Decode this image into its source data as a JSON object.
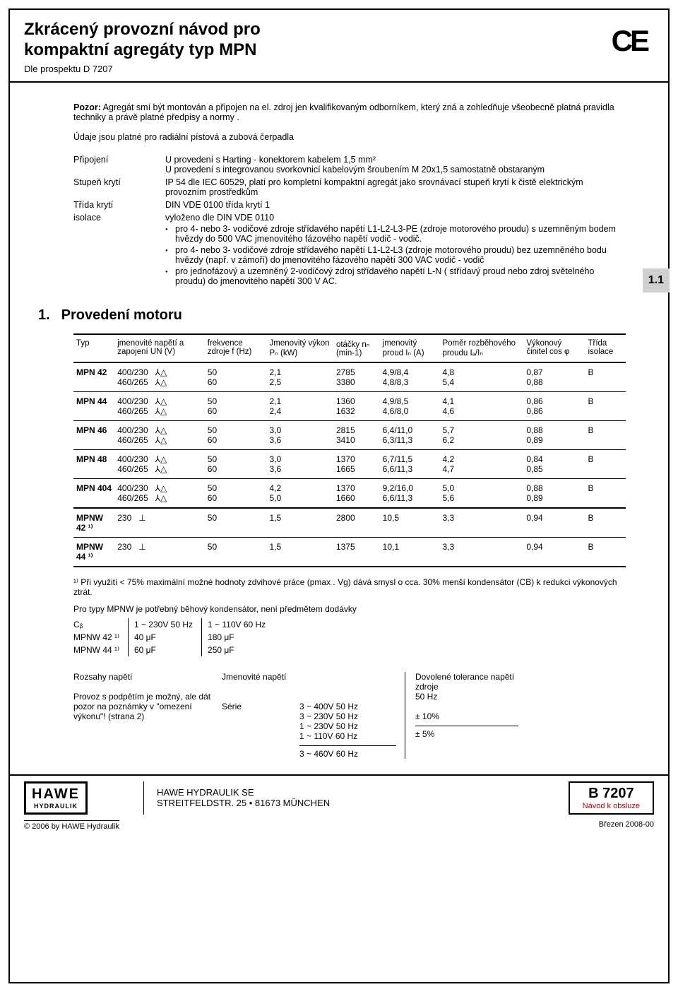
{
  "header": {
    "title_line1": "Zkrácený provozní návod pro",
    "title_line2": "kompaktní agregáty typ MPN",
    "subtitle": "Dle prospektu D 7207",
    "ce_mark": "CE"
  },
  "side_tab": "1.1",
  "warning": {
    "label": "Pozor:",
    "text": " Agregát smí být montován a  připojen na el. zdroj jen kvalifikovaným odborníkem, který zná a zohledňuje všeobecně platná pravidla techniky a právě platné předpisy a normy ."
  },
  "validity_note": "Údaje jsou platné pro radiální pístová  a zubová čerpadla",
  "specs": {
    "pripojeni": {
      "label": "Připojení",
      "line1": "U provedení s Harting - konektorem kabelem 1,5 mm²",
      "line2": "U provedení s integrovanou svorkovnicí kabelovým šroubením M 20x1,5 samostatně obstaraným"
    },
    "stupen": {
      "label": "Stupeň krytí",
      "val": "IP 54 dle IEC 60529, platí pro kompletní kompaktní agregát jako srovnávací stupeň krytí k čistě elektrickým provozním prostředkům"
    },
    "trida": {
      "label": "Třída krytí",
      "val": "DIN VDE 0100 třída krytí 1"
    },
    "isolace": {
      "label": "isolace",
      "val": "vyloženo dle DIN VDE 0110",
      "b1": "pro 4- nebo 3- vodičové zdroje střídavého napětí L1-L2-L3-PE (zdroje motorového proudu) s uzemněným bodem hvězdy do 500 VAC jmenovitého fázového napětí vodič - vodič.",
      "b2": "pro 4- nebo 3- vodičové zdroje střídavého napětí L1-L2-L3 (zdroje motorového proudu) bez uzemněného bodu hvězdy (např. v zámoří) do jmenovitého fázového napětí 300 VAC vodič - vodič",
      "b3": "pro jednofázový a uzemněný 2-vodičový zdroj střídavého napětí L-N ( střídavý proud nebo zdroj světelného proudu) do jmenovitého napětí 300 V AC."
    }
  },
  "section1": {
    "num": "1.",
    "title": "Provedení motoru"
  },
  "motor_table": {
    "headers": {
      "typ": "Typ",
      "volt": "jmenovité napětí a zapojení UN (V)",
      "freq": "frekvence zdroje f (Hz)",
      "power": "Jmenovitý výkon Pₙ (kW)",
      "rpm": "otáčky nₙ (min-1)",
      "current": "jmenovitý proud Iₙ (A)",
      "ratio": "Poměr rozběhového proudu Iₐ/Iₙ",
      "cos": "Výkonový činitel cos φ",
      "iso": "Třída isolace"
    },
    "yd_sym": "⅄△",
    "perp_sym": "⊥",
    "rows": [
      {
        "typ": "MPN 42",
        "v1": "400/230",
        "v2": "460/265",
        "f1": "50",
        "f2": "60",
        "p1": "2,1",
        "p2": "2,5",
        "r1": "2785",
        "r2": "3380",
        "i1": "4,9/8,4",
        "i2": "4,8/8,3",
        "ra1": "4,8",
        "ra2": "5,4",
        "c1": "0,87",
        "c2": "0,88",
        "iso": "B",
        "sym": "yd"
      },
      {
        "typ": "MPN 44",
        "v1": "400/230",
        "v2": "460/265",
        "f1": "50",
        "f2": "60",
        "p1": "2,1",
        "p2": "2,4",
        "r1": "1360",
        "r2": "1632",
        "i1": "4,9/8,5",
        "i2": "4,6/8,0",
        "ra1": "4,1",
        "ra2": "4,6",
        "c1": "0,86",
        "c2": "0,86",
        "iso": "B",
        "sym": "yd"
      },
      {
        "typ": "MPN 46",
        "v1": "400/230",
        "v2": "460/265",
        "f1": "50",
        "f2": "60",
        "p1": "3,0",
        "p2": "3,6",
        "r1": "2815",
        "r2": "3410",
        "i1": "6,4/11,0",
        "i2": "6,3/11,3",
        "ra1": "5,7",
        "ra2": "6,2",
        "c1": "0,88",
        "c2": "0,89",
        "iso": "B",
        "sym": "yd"
      },
      {
        "typ": "MPN 48",
        "v1": "400/230",
        "v2": "460/265",
        "f1": "50",
        "f2": "60",
        "p1": "3,0",
        "p2": "3,6",
        "r1": "1370",
        "r2": "1665",
        "i1": "6,7/11,5",
        "i2": "6,6/11,3",
        "ra1": "4,2",
        "ra2": "4,7",
        "c1": "0,84",
        "c2": "0,85",
        "iso": "B",
        "sym": "yd"
      },
      {
        "typ": "MPN 404",
        "v1": "400/230",
        "v2": "460/265",
        "f1": "50",
        "f2": "60",
        "p1": "4,2",
        "p2": "5,0",
        "r1": "1370",
        "r2": "1660",
        "i1": "9,2/16,0",
        "i2": "6,6/11,3",
        "ra1": "5,0",
        "ra2": "5,6",
        "c1": "0,88",
        "c2": "0,89",
        "iso": "B",
        "sym": "yd"
      },
      {
        "typ": "MPNW 42 ¹⁾",
        "v1": "230",
        "f1": "50",
        "p1": "1,5",
        "r1": "2800",
        "i1": "10,5",
        "ra1": "3,3",
        "c1": "0,94",
        "iso": "B",
        "sym": "perp",
        "single": true,
        "group_start": true
      },
      {
        "typ": "MPNW 44 ¹⁾",
        "v1": "230",
        "f1": "50",
        "p1": "1,5",
        "r1": "1375",
        "i1": "10,1",
        "ra1": "3,3",
        "c1": "0,94",
        "iso": "B",
        "sym": "perp",
        "single": true
      }
    ]
  },
  "footnote1": "¹⁾ Při využití < 75% maximální možné hodnoty zdvihové práce (pmax . Vg) dává smysl o cca. 30% menší kondensátor (CB) k redukci výkonových ztrát.",
  "cap_note": "Pro typy MPNW je potřebný běhový kondensátor, není předmětem dodávky",
  "cap_table": {
    "h1": "Cᵦ",
    "h2": "1 ~ 230V 50 Hz",
    "h3": "1 ~ 110V 60 Hz",
    "rows": [
      {
        "a": "MPNW 42 ¹⁾",
        "b": "40 μF",
        "c": "180 μF"
      },
      {
        "a": "MPNW 44 ¹⁾",
        "b": "60 μF",
        "c": "250 μF"
      }
    ]
  },
  "volt": {
    "label_range": "Rozsahy napětí",
    "label_nom": "Jmenovité napětí",
    "label_tol": "Dovolené tolerance napětí zdroje",
    "label_50": "50 Hz",
    "operation_note": "Provoz s podpětím je možný, ale dát pozor na poznámky v \"omezení výkonu\"! (strana 2)",
    "series_label": "Série",
    "series_vals": "3 ~ 400V 50 Hz\n3 ~ 230V 50 Hz\n1 ~ 230V 50 Hz\n1 ~ 110V 60 Hz",
    "tol1": "± 10%",
    "row2_volt": "3 ~ 460V 60 Hz",
    "tol2": "± 5%"
  },
  "footer": {
    "logo_top": "HAWE",
    "logo_bot": "HYDRAULIK",
    "addr1": "HAWE HYDRAULIK SE",
    "addr2": "STREITFELDSTR. 25 • 81673 MÜNCHEN",
    "docno": "B 7207",
    "docno_sub": "Návod k obsluze",
    "copyright": "© 2006 by HAWE Hydraulik",
    "date": "Březen 2008-00"
  }
}
